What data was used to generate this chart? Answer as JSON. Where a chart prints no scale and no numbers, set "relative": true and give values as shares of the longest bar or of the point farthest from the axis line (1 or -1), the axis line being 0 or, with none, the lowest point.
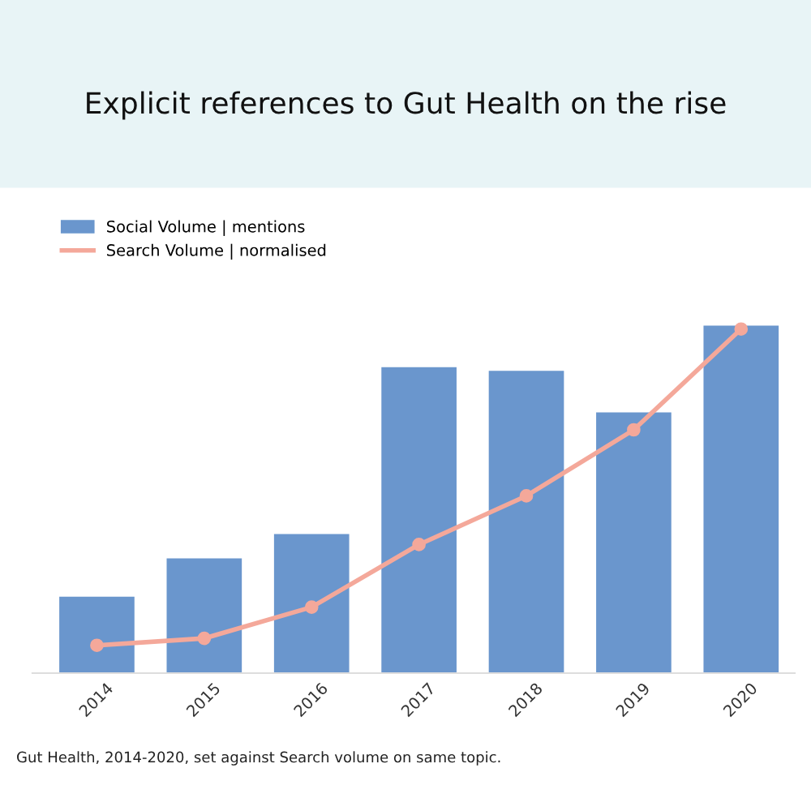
{
  "chart_data": {
    "type": "bar",
    "title": "Explicit references to Gut Health on the rise",
    "relative": true,
    "categories": [
      "2014",
      "2015",
      "2016",
      "2017",
      "2018",
      "2019",
      "2020"
    ],
    "series": [
      {
        "name": "Social Volume | mentions",
        "color": "#6a96cd",
        "values": [
          0.22,
          0.33,
          0.4,
          0.88,
          0.87,
          0.75,
          1
        ]
      },
      {
        "name": "Search Volume | normalised",
        "type": "line",
        "color": "#f4a89a",
        "values": [
          0.08,
          0.1,
          0.19,
          0.37,
          0.51,
          0.7,
          0.99
        ]
      }
    ],
    "marker": "circle",
    "line_style": "solid",
    "legend": "top left",
    "grid": false,
    "annotations": [
      "Gut Health, 2014-2020, set against Search volume on same topic."
    ]
  }
}
